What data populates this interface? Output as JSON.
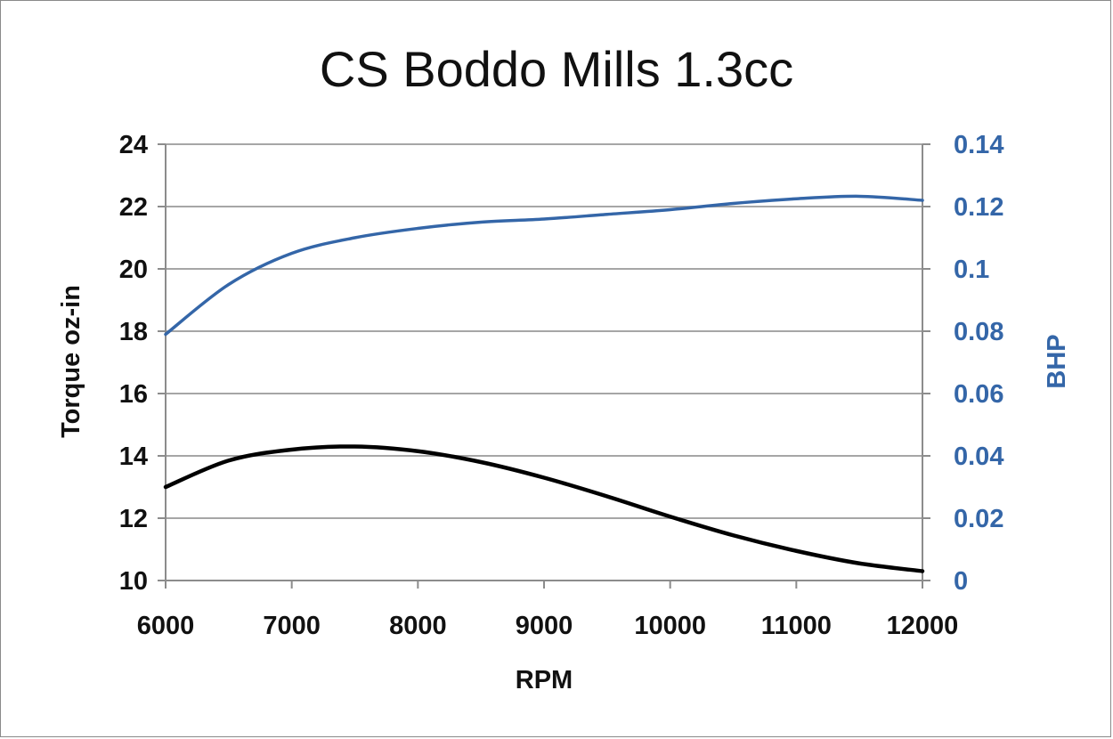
{
  "chart_data": {
    "type": "line",
    "title": "CS Boddo Mills 1.3cc",
    "xlabel": "RPM",
    "ylabel": "Torque oz-in",
    "y2label": "BHP",
    "xlim": [
      6000,
      12000
    ],
    "ylim": [
      10,
      24
    ],
    "y2lim": [
      0,
      0.14
    ],
    "x_ticks": [
      "6000",
      "7000",
      "8000",
      "9000",
      "10000",
      "11000",
      "12000"
    ],
    "y_ticks": [
      "10",
      "12",
      "14",
      "16",
      "18",
      "20",
      "22",
      "24"
    ],
    "y2_ticks": [
      "0",
      "0.02",
      "0.04",
      "0.06",
      "0.08",
      "0.1",
      "0.12",
      "0.14"
    ],
    "grid": true,
    "legend": "none",
    "colors": {
      "torque": "#000000",
      "bhp": "#3466a8",
      "grid": "#a6a6a6",
      "axis": "#8c8c8c",
      "right_axis_text": "#3466a8"
    },
    "series": [
      {
        "axis": "left",
        "color": "#000000",
        "x": [
          6000,
          6500,
          7000,
          7500,
          8000,
          8500,
          9000,
          9500,
          10000,
          10500,
          11000,
          11500,
          12000
        ],
        "values": [
          13.0,
          13.85,
          14.2,
          14.3,
          14.15,
          13.8,
          13.3,
          12.7,
          12.05,
          11.45,
          10.95,
          10.55,
          10.3
        ]
      },
      {
        "axis": "right",
        "color": "#3466a8",
        "x": [
          6000,
          6500,
          7000,
          7500,
          8000,
          8500,
          9000,
          9500,
          10000,
          10500,
          11000,
          11500,
          12000
        ],
        "values": [
          0.079,
          0.095,
          0.105,
          0.11,
          0.113,
          0.115,
          0.116,
          0.1175,
          0.119,
          0.121,
          0.1225,
          0.1233,
          0.122
        ]
      }
    ]
  }
}
